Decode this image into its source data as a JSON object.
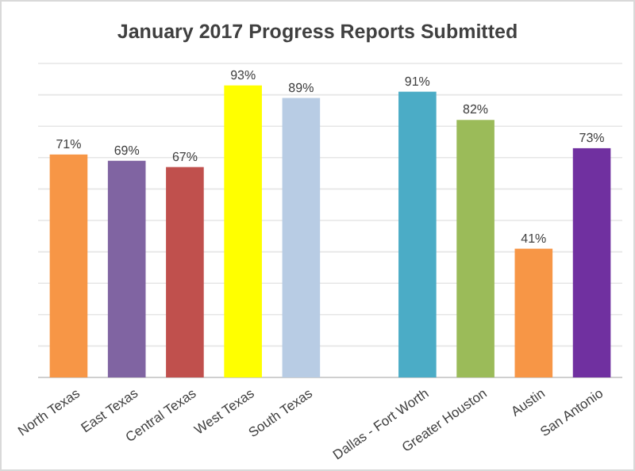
{
  "chart_data": {
    "type": "bar",
    "title": "January 2017 Progress Reports Submitted",
    "categories": [
      "North Texas",
      "East Texas",
      "Central Texas",
      "West Texas",
      "South Texas",
      null,
      "Dallas - Fort Worth",
      "Greater Houston",
      "Austin",
      "San Antonio"
    ],
    "values": [
      71,
      69,
      67,
      93,
      89,
      null,
      91,
      82,
      41,
      73
    ],
    "colors": [
      "#f79646",
      "#8064a2",
      "#c0504d",
      "#ffff00",
      "#b8cce4",
      null,
      "#4bacc6",
      "#9bbb59",
      "#f79646",
      "#7030a0"
    ],
    "value_labels": [
      "71%",
      "69%",
      "67%",
      "93%",
      "89%",
      null,
      "91%",
      "82%",
      "41%",
      "73%"
    ],
    "ylim": [
      0,
      100
    ],
    "yticks": [
      {
        "value": 0,
        "label": null
      },
      {
        "value": 10,
        "label": null
      },
      {
        "value": 20,
        "label": null
      },
      {
        "value": 30,
        "label": null
      },
      {
        "value": 40,
        "label": null
      },
      {
        "value": 50,
        "label": null
      },
      {
        "value": 60,
        "label": null
      },
      {
        "value": 70,
        "label": null
      },
      {
        "value": 80,
        "label": null
      },
      {
        "value": 90,
        "label": null
      },
      {
        "value": 100,
        "label": null
      }
    ],
    "tick_labels": "x",
    "grid": "y"
  }
}
